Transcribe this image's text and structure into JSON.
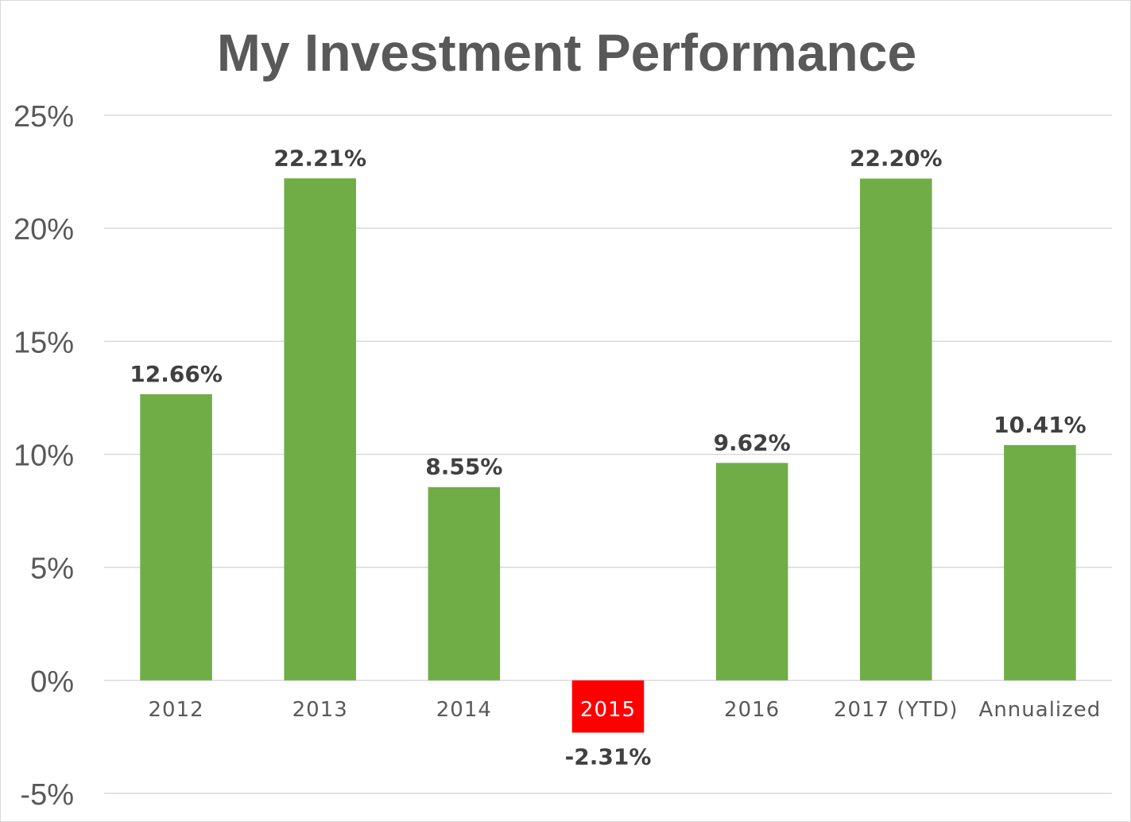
{
  "chart_data": {
    "type": "bar",
    "title": "My Investment Performance",
    "categories": [
      "2012",
      "2013",
      "2014",
      "2015",
      "2016",
      "2017 (YTD)",
      "Annualized"
    ],
    "values": [
      12.66,
      22.21,
      8.55,
      -2.31,
      9.62,
      22.2,
      10.41
    ],
    "data_labels": [
      "12.66%",
      "22.21%",
      "8.55%",
      "-2.31%",
      "9.62%",
      "22.20%",
      "10.41%"
    ],
    "ylim": [
      -5,
      25
    ],
    "yticks": [
      25,
      20,
      15,
      10,
      5,
      0,
      -5
    ],
    "ytick_labels": [
      "25%",
      "20%",
      "15%",
      "10%",
      "5%",
      "0%",
      "-5%"
    ],
    "xlabel": "",
    "ylabel": "",
    "grid": true,
    "legend": "none",
    "colors": {
      "bar": "#70ad47",
      "negative_bar": "#ff0000",
      "gridline": "#d9d9d9",
      "title": "#595959",
      "axis_text": "#595959",
      "data_label": "#404040"
    }
  }
}
